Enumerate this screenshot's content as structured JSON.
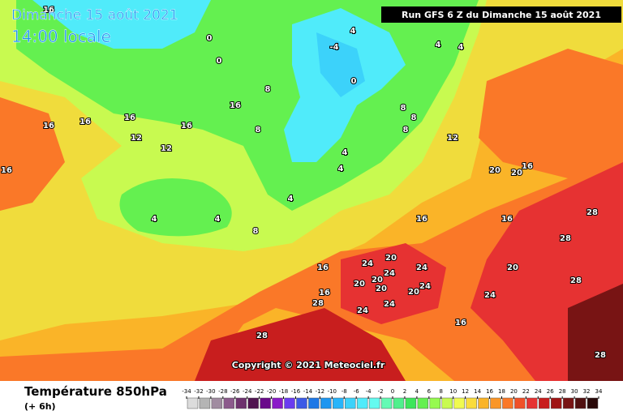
{
  "map": {
    "title_date": "Dimanche 15 août 2021",
    "title_time": "14:00 locale",
    "run": "Run GFS 6 Z du Dimanche 15 août 2021",
    "copyright": "Copyright © 2021 Meteociel.fr",
    "variable": "Température 850hPa",
    "lead": "(+ 6h)",
    "contour_labels": [
      16,
      0,
      0,
      4,
      -4,
      0,
      4,
      4,
      8,
      8,
      16,
      16,
      16,
      12,
      12,
      16,
      16,
      8,
      8,
      4,
      4,
      4,
      8,
      12,
      16,
      20,
      20,
      16,
      4,
      4,
      8,
      16,
      20,
      24,
      20,
      24,
      20,
      24,
      20,
      24,
      16,
      28,
      24,
      20,
      24,
      28,
      28,
      24,
      16,
      28,
      20,
      16,
      16,
      28,
      28
    ],
    "scale": {
      "ticks": [
        -34,
        -32,
        -30,
        -28,
        -26,
        -24,
        -22,
        -20,
        -18,
        -16,
        -14,
        -12,
        -10,
        -8,
        -6,
        -4,
        -2,
        0,
        2,
        4,
        6,
        8,
        10,
        12,
        14,
        16,
        18,
        20,
        22,
        24,
        26,
        28,
        30,
        32,
        34
      ],
      "colors": [
        "#dcdcdc",
        "#b4b4b4",
        "#a08ca0",
        "#8c5a8c",
        "#6e326e",
        "#501450",
        "#6a0a8a",
        "#8a1ac8",
        "#6a3cf0",
        "#3c5ae6",
        "#1e78e6",
        "#1e96f0",
        "#28b4fa",
        "#3cd2fa",
        "#50ebfa",
        "#64faf0",
        "#64fab4",
        "#50f08c",
        "#3ce65a",
        "#64f050",
        "#96fa50",
        "#c8fa50",
        "#f0fa50",
        "#fadc3c",
        "#fab428",
        "#fa9628",
        "#fa7828",
        "#f05028",
        "#e63232",
        "#c81e1e",
        "#a01414",
        "#781414",
        "#501010",
        "#280808"
      ]
    }
  }
}
